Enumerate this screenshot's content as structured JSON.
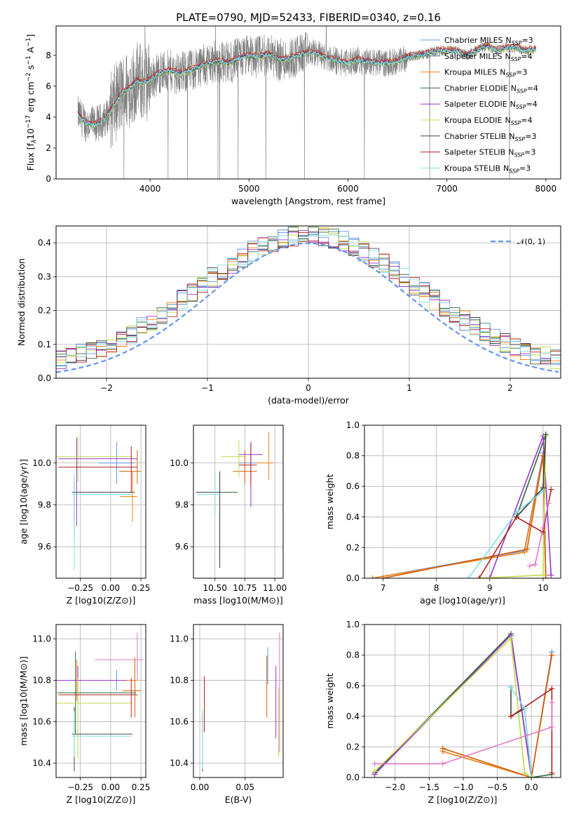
{
  "figure": {
    "title": "PLATE=0790, MJD=52433, FIBERID=0340, z=0.16",
    "models": [
      {
        "name": "Chabrier MILES",
        "n": "3",
        "color": "#6495ED"
      },
      {
        "name": "Salpeter MILES",
        "n": "4",
        "color": "#4682B4"
      },
      {
        "name": "Kroupa MILES",
        "n": "3",
        "color": "#FF7F0E"
      },
      {
        "name": "Chabrier ELODIE",
        "n": "4",
        "color": "#2E6B3A"
      },
      {
        "name": "Salpeter ELODIE",
        "n": "4",
        "color": "#9932CC"
      },
      {
        "name": "Kroupa ELODIE",
        "n": "4",
        "color": "#BFDB4B"
      },
      {
        "name": "Chabrier STELIB",
        "n": "3",
        "color": "#444444"
      },
      {
        "name": "Salpeter STELIB",
        "n": "3",
        "color": "#B22222"
      },
      {
        "name": "Kroupa STELIB",
        "n": "3",
        "color": "#7FDFE6"
      }
    ],
    "nssp_label": "N",
    "nssp_sub": "SSP"
  },
  "chart_data": [
    {
      "id": "spectrum",
      "type": "line",
      "title": "PLATE=0790, MJD=52433, FIBERID=0340, z=0.16",
      "xlabel": "wavelength [Angstrom, rest frame]",
      "ylabel_parts": [
        "Flux [f",
        "λ",
        "10",
        "−17",
        " erg cm",
        "−2",
        " s",
        "−1",
        " A",
        "−1",
        "]"
      ],
      "xlim": [
        3050,
        8150
      ],
      "ylim": [
        0,
        9.9
      ],
      "xticks": [
        4000,
        5000,
        6000,
        7000,
        8000
      ],
      "yticks": [
        0,
        2,
        4,
        6,
        8
      ],
      "data_color": "#808080",
      "model_color": "#7FDFE6",
      "model_knots": {
        "x": [
          3270,
          3350,
          3450,
          3550,
          3650,
          3720,
          3800,
          3870,
          3930,
          4000,
          4100,
          4200,
          4300,
          4400,
          4500,
          4600,
          4700,
          4800,
          4900,
          5000,
          5100,
          5200,
          5300,
          5400,
          5500,
          5600,
          5700,
          5800,
          5900,
          6000,
          6100,
          6200,
          6300,
          6400,
          6500,
          6600,
          6700,
          6800,
          6900,
          7000,
          7100,
          7200,
          7300,
          7400,
          7500,
          7600,
          7700,
          7800,
          7900
        ],
        "y": [
          4.2,
          3.6,
          3.5,
          3.9,
          4.9,
          5.6,
          5.9,
          6.4,
          6.2,
          6.4,
          6.9,
          7.0,
          6.8,
          7.0,
          7.3,
          7.5,
          7.6,
          7.5,
          7.8,
          8.0,
          7.9,
          8.1,
          7.7,
          7.8,
          8.0,
          8.2,
          8.1,
          7.8,
          7.6,
          7.5,
          7.7,
          7.6,
          7.5,
          7.5,
          7.6,
          7.9,
          8.0,
          8.1,
          8.3,
          8.3,
          8.3,
          8.0,
          8.3,
          8.6,
          8.3,
          8.5,
          8.5,
          8.3,
          8.4
        ]
      },
      "legend_position": "upper-right"
    },
    {
      "id": "residuals",
      "type": "histogram",
      "xlabel": "(data-model)/error",
      "ylabel": "Normed distribution",
      "xlim": [
        -2.5,
        2.5
      ],
      "ylim": [
        0,
        0.45
      ],
      "xticks": [
        -2,
        -1,
        0,
        1,
        2
      ],
      "xticklabels": [
        "−2",
        "−1",
        "0",
        "1",
        "2"
      ],
      "yticks": [
        0.0,
        0.1,
        0.2,
        0.3,
        0.4
      ],
      "yticklabels": [
        "0.0",
        "0.1",
        "0.2",
        "0.3",
        "0.4"
      ],
      "bin_width": 0.1,
      "reference_curve": {
        "label": "𝒩(0, 1)",
        "color": "#6495ED",
        "style": "dashed"
      },
      "legend_position": "upper-right",
      "grid": true
    },
    {
      "id": "age_vs_z",
      "type": "errorbar",
      "xlabel": "Z [log10(Z/Z⊙)]",
      "ylabel": "age  [log10(age/yr)]",
      "xlim": [
        -0.45,
        0.29
      ],
      "ylim": [
        9.45,
        10.18
      ],
      "xticks": [
        -0.25,
        0.0,
        0.25
      ],
      "xticklabels": [
        "−0.25",
        "0.00",
        "0.25"
      ],
      "yticks": [
        9.6,
        9.8,
        10.0
      ],
      "yticklabels": [
        "9.6",
        "9.8",
        "10.0"
      ],
      "points": [
        {
          "model": 0,
          "x": 0.05,
          "y": 10.0,
          "xerr": [
            0.15,
            0.15
          ],
          "yerr": [
            0.1,
            0.1
          ]
        },
        {
          "model": 1,
          "x": 0.18,
          "y": 9.84,
          "xerr": [
            0.1,
            0.04
          ],
          "yerr": [
            0.12,
            0.12
          ]
        },
        {
          "model": 2,
          "x": 0.22,
          "y": 9.96,
          "xerr": [
            0.15,
            0.03
          ],
          "yerr": [
            0.06,
            0.1
          ]
        },
        {
          "model": 3,
          "x": -0.3,
          "y": 9.86,
          "xerr": [
            0.02,
            0.5
          ],
          "yerr": [
            0.22,
            0.05
          ]
        },
        {
          "model": 4,
          "x": -0.28,
          "y": 10.02,
          "xerr": [
            0.15,
            0.5
          ],
          "yerr": [
            0.32,
            0.1
          ]
        },
        {
          "model": 5,
          "x": -0.27,
          "y": 10.03,
          "xerr": [
            0.18,
            0.45
          ],
          "yerr": [
            0.12,
            0.1
          ]
        },
        {
          "model": 6,
          "x": -0.3,
          "y": 9.86,
          "xerr": [
            0.02,
            0.48
          ],
          "yerr": [
            0.14,
            0.05
          ]
        },
        {
          "model": 7,
          "x": 0.17,
          "y": 9.98,
          "xerr": [
            0.6,
            0.05
          ],
          "yerr": [
            0.12,
            0.1
          ]
        },
        {
          "model": 8,
          "x": -0.3,
          "y": 9.85,
          "xerr": [
            0.02,
            0.48
          ],
          "yerr": [
            0.36,
            0.1
          ]
        }
      ],
      "grid": true
    },
    {
      "id": "age_vs_mass",
      "type": "errorbar",
      "xlabel": "mass [log10(M/M⊙)]",
      "ylabel": "",
      "xlim": [
        10.32,
        11.07
      ],
      "ylim": [
        9.45,
        10.18
      ],
      "xticks": [
        10.5,
        10.75,
        11.0
      ],
      "xticklabels": [
        "10.50",
        "10.75",
        "11.00"
      ],
      "yticks": [
        9.6,
        9.8,
        10.0
      ],
      "yticklabels": [
        "9.6",
        "9.8",
        "10.0"
      ],
      "points": [
        {
          "model": 0,
          "x": 10.8,
          "y": 10.0,
          "xerr": [
            0.1,
            0.05
          ],
          "yerr": [
            0.05,
            0.1
          ]
        },
        {
          "model": 1,
          "x": 10.95,
          "y": 10.0,
          "xerr": [
            0.1,
            0.04
          ],
          "yerr": [
            0.08,
            0.15
          ]
        },
        {
          "model": 2,
          "x": 10.75,
          "y": 9.96,
          "xerr": [
            0.1,
            0.1
          ],
          "yerr": [
            0.06,
            0.1
          ]
        },
        {
          "model": 3,
          "x": 10.54,
          "y": 9.86,
          "xerr": [
            0.2,
            0.15
          ],
          "yerr": [
            0.36,
            0.1
          ]
        },
        {
          "model": 4,
          "x": 10.8,
          "y": 10.04,
          "xerr": [
            0.1,
            0.1
          ],
          "yerr": [
            0.25,
            0.06
          ]
        },
        {
          "model": 5,
          "x": 10.7,
          "y": 10.03,
          "xerr": [
            0.15,
            0.05
          ],
          "yerr": [
            0.1,
            0.08
          ]
        },
        {
          "model": 6,
          "x": 10.54,
          "y": 9.86,
          "xerr": [
            0.2,
            0.02
          ],
          "yerr": [
            0.36,
            0.1
          ]
        },
        {
          "model": 7,
          "x": 10.8,
          "y": 9.99,
          "xerr": [
            0.1,
            0.05
          ],
          "yerr": [
            0.1,
            0.1
          ]
        },
        {
          "model": 8,
          "x": 10.5,
          "y": 9.85,
          "xerr": [
            0.15,
            0.05
          ],
          "yerr": [
            0.1,
            0.1
          ]
        }
      ],
      "grid": true
    },
    {
      "id": "weight_vs_age",
      "type": "line",
      "xlabel": "age  [log10(age/yr)]",
      "ylabel": "mass weight",
      "xlim": [
        6.65,
        10.33
      ],
      "ylim": [
        0,
        1.0
      ],
      "xticks": [
        7,
        8,
        9,
        10
      ],
      "yticks": [
        0.0,
        0.2,
        0.4,
        0.6,
        0.8,
        1.0
      ],
      "yticklabels": [
        "0.0",
        "0.2",
        "0.4",
        "0.6",
        "0.8",
        "1.0"
      ],
      "series": [
        {
          "model": 0,
          "x": [
            6.8,
            9.65,
            10.0,
            10.05
          ],
          "y": [
            0.0,
            0.18,
            0.82,
            0.0
          ]
        },
        {
          "model": 1,
          "x": [
            6.8,
            9.65,
            10.0,
            10.05
          ],
          "y": [
            0.0,
            0.17,
            0.8,
            0.02
          ]
        },
        {
          "model": 2,
          "x": [
            7.0,
            9.7,
            10.0,
            10.05
          ],
          "y": [
            0.0,
            0.19,
            0.8,
            0.0
          ]
        },
        {
          "model": 3,
          "x": [
            9.5,
            10.0,
            10.05,
            9.5
          ],
          "y": [
            0.4,
            0.59,
            0.94,
            0.4
          ]
        },
        {
          "model": 4,
          "x": [
            9.0,
            10.0,
            10.15
          ],
          "y": [
            0.0,
            0.93,
            0.02
          ]
        },
        {
          "model": 5,
          "x": [
            8.8,
            10.0,
            10.05
          ],
          "y": [
            0.0,
            0.02,
            0.93
          ]
        },
        {
          "model": 6,
          "x": [
            9.5,
            10.0,
            10.05
          ],
          "y": [
            0.4,
            0.59,
            0.94
          ]
        },
        {
          "model": 7,
          "x": [
            8.8,
            9.5,
            10.0,
            10.15
          ],
          "y": [
            0.0,
            0.4,
            0.3,
            0.58
          ]
        },
        {
          "model": 8,
          "x": [
            8.6,
            9.5,
            10.0
          ],
          "y": [
            0.0,
            0.43,
            0.57
          ]
        },
        {
          "model": 9,
          "x": [
            9.75,
            9.85,
            10.0,
            10.1
          ],
          "y": [
            0.08,
            0.09,
            0.33,
            0.49
          ]
        }
      ],
      "grid": true
    },
    {
      "id": "mass_vs_z",
      "type": "errorbar",
      "xlabel": "Z [log10(Z/Z⊙)]",
      "ylabel": "mass [log10(M/M⊙)]",
      "xlim": [
        -0.45,
        0.29
      ],
      "ylim": [
        10.33,
        11.07
      ],
      "xticks": [
        -0.25,
        0.0,
        0.25
      ],
      "xticklabels": [
        "−0.25",
        "0.00",
        "0.25"
      ],
      "yticks": [
        10.4,
        10.6,
        10.8,
        11.0
      ],
      "yticklabels": [
        "10.4",
        "10.6",
        "10.8",
        "11.0"
      ],
      "points": [
        {
          "model": 0,
          "x": 0.05,
          "y": 10.8,
          "xerr": [
            0.35,
            0.15
          ],
          "yerr": [
            0.05,
            0.05
          ]
        },
        {
          "model": 1,
          "x": -0.28,
          "y": 10.8,
          "xerr": [
            0.15,
            0.5
          ],
          "yerr": [
            0.1,
            0.1
          ]
        },
        {
          "model": 2,
          "x": 0.2,
          "y": 10.75,
          "xerr": [
            0.1,
            0.05
          ],
          "yerr": [
            0.13,
            0.16
          ]
        },
        {
          "model": 3,
          "x": -0.29,
          "y": 10.74,
          "xerr": [
            0.15,
            0.5
          ],
          "yerr": [
            0.2,
            0.2
          ]
        },
        {
          "model": 4,
          "x": -0.27,
          "y": 10.8,
          "xerr": [
            0.2,
            0.4
          ],
          "yerr": [
            0.1,
            0.07
          ]
        },
        {
          "model": 5,
          "x": -0.27,
          "y": 10.69,
          "xerr": [
            0.2,
            0.45
          ],
          "yerr": [
            0.27,
            0.12
          ]
        },
        {
          "model": 6,
          "x": -0.3,
          "y": 10.54,
          "xerr": [
            0.02,
            0.48
          ],
          "yerr": [
            0.18,
            0.13
          ]
        },
        {
          "model": 7,
          "x": 0.17,
          "y": 10.73,
          "xerr": [
            0.6,
            0.05
          ],
          "yerr": [
            0.11,
            0.08
          ]
        },
        {
          "model": 8,
          "x": -0.3,
          "y": 10.53,
          "xerr": [
            0.02,
            0.47
          ],
          "yerr": [
            0.1,
            0.12
          ]
        },
        {
          "model": 9,
          "x": 0.22,
          "y": 10.9,
          "xerr": [
            0.35,
            0.05
          ],
          "yerr": [
            0.1,
            0.13
          ]
        }
      ],
      "grid": true
    },
    {
      "id": "mass_vs_ebv",
      "type": "errorbar",
      "xlabel": "E(B-V)",
      "ylabel": "",
      "xlim": [
        -0.007,
        0.092
      ],
      "ylim": [
        10.33,
        11.07
      ],
      "xticks": [
        0.0,
        0.05
      ],
      "xticklabels": [
        "0.00",
        "0.05"
      ],
      "yticks": [
        10.4,
        10.6,
        10.8,
        11.0
      ],
      "yticklabels": [
        "10.4",
        "10.6",
        "10.8",
        "11.0"
      ],
      "points": [
        {
          "model": 0,
          "x": 0.075,
          "y": 10.88,
          "yerr": [
            0.1,
            0.08
          ]
        },
        {
          "model": 2,
          "x": 0.074,
          "y": 10.8,
          "yerr": [
            0.18,
            0.12
          ]
        },
        {
          "model": 4,
          "x": 0.084,
          "y": 10.72,
          "yerr": [
            0.2,
            0.15
          ]
        },
        {
          "model": 5,
          "x": 0.087,
          "y": 10.6,
          "yerr": [
            0.17,
            0.16
          ]
        },
        {
          "model": 6,
          "x": 0.003,
          "y": 10.5,
          "yerr": [
            0.14,
            0.14
          ]
        },
        {
          "model": 7,
          "x": 0.005,
          "y": 10.65,
          "yerr": [
            0.1,
            0.17
          ]
        },
        {
          "model": 8,
          "x": 0.003,
          "y": 10.52,
          "yerr": [
            0.15,
            0.14
          ]
        },
        {
          "model": 9,
          "x": 0.088,
          "y": 10.75,
          "yerr": [
            0.3,
            0.28
          ]
        }
      ],
      "grid": true
    },
    {
      "id": "weight_vs_z",
      "type": "line",
      "xlabel": "Z [log10(Z/Z⊙)]",
      "ylabel": "mass weight",
      "xlim": [
        -2.45,
        0.43
      ],
      "ylim": [
        0,
        1.0
      ],
      "xticks": [
        -2.0,
        -1.5,
        -1.0,
        -0.5,
        0.0
      ],
      "xticklabels": [
        "−2.0",
        "−1.5",
        "−1.0",
        "−0.5",
        "0.0"
      ],
      "yticks": [
        0.0,
        0.2,
        0.4,
        0.6,
        0.8,
        1.0
      ],
      "yticklabels": [
        "0.0",
        "0.2",
        "0.4",
        "0.6",
        "0.8",
        "1.0"
      ],
      "series": [
        {
          "model": 0,
          "x": [
            -1.3,
            0.0,
            0.3
          ],
          "y": [
            0.17,
            0.0,
            0.82
          ]
        },
        {
          "model": 1,
          "x": [
            -1.3,
            0.0,
            0.3
          ],
          "y": [
            0.17,
            0.0,
            0.8
          ]
        },
        {
          "model": 2,
          "x": [
            -1.3,
            0.0,
            0.3
          ],
          "y": [
            0.19,
            0.0,
            0.8
          ]
        },
        {
          "model": 3,
          "x": [
            -2.3,
            -0.3,
            0.0,
            0.3
          ],
          "y": [
            0.03,
            0.94,
            0.0,
            0.02
          ]
        },
        {
          "model": 4,
          "x": [
            -2.3,
            -0.3,
            0.0
          ],
          "y": [
            0.02,
            0.93,
            0.0
          ]
        },
        {
          "model": 5,
          "x": [
            -2.3,
            -0.3,
            -0.1,
            0.0
          ],
          "y": [
            0.04,
            0.91,
            0.03,
            0.0
          ]
        },
        {
          "model": 6,
          "x": [
            -0.3,
            -0.3,
            -0.1,
            0.0
          ],
          "y": [
            0.59,
            0.4,
            0.45,
            0.0
          ]
        },
        {
          "model": 7,
          "x": [
            -0.3,
            0.3,
            0.3
          ],
          "y": [
            0.4,
            0.58,
            0.03
          ]
        },
        {
          "model": 8,
          "x": [
            -0.3,
            -0.1,
            0.0
          ],
          "y": [
            0.59,
            0.45,
            0.0
          ]
        },
        {
          "model": 9,
          "x": [
            -2.3,
            -1.3,
            0.3,
            0.3
          ],
          "y": [
            0.09,
            0.09,
            0.33,
            0.49
          ]
        }
      ],
      "grid": true
    }
  ]
}
